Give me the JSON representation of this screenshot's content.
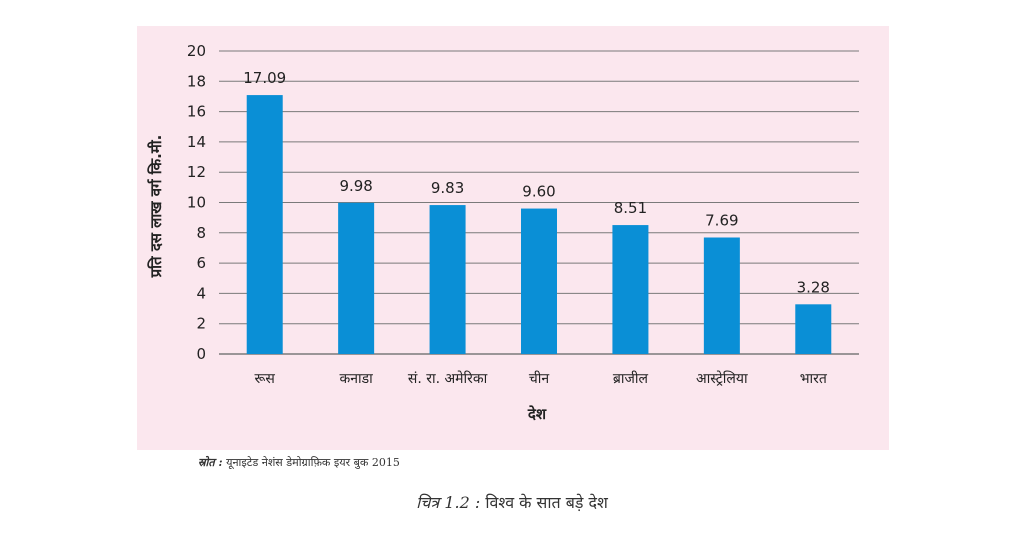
{
  "chart_data": {
    "type": "bar",
    "categories": [
      "रूस",
      "कनाडा",
      "सं. रा. अमेरिका",
      "चीन",
      "ब्राजील",
      "आस्ट्रेलिया",
      "भारत"
    ],
    "values": [
      17.09,
      9.98,
      9.83,
      9.6,
      8.51,
      7.69,
      3.28
    ],
    "data_labels": [
      "17.09",
      "9.98",
      "9.83",
      "9.60",
      "8.51",
      "7.69",
      "3.28"
    ],
    "yticks": [
      "0",
      "2",
      "4",
      "6",
      "8",
      "10",
      "12",
      "14",
      "16",
      "18",
      "20"
    ],
    "ylim": [
      0,
      20
    ],
    "xlabel": "देश",
    "ylabel": "प्रति दस लाख वर्ग कि.मी.",
    "grid": true,
    "legend": "none",
    "colors": {
      "bar": "#0a8fd6",
      "panel": "#fbe7ee",
      "grid": "#7a7a7a"
    }
  },
  "source_note": {
    "prefix": "स्रोत :",
    "text": "यूनाइटेड नेशंस डेमोग्राफ़िक इयर बुक 2015"
  },
  "caption": {
    "number": "चित्र 1.2 :",
    "text": "विश्व के सात बड़े देश"
  }
}
